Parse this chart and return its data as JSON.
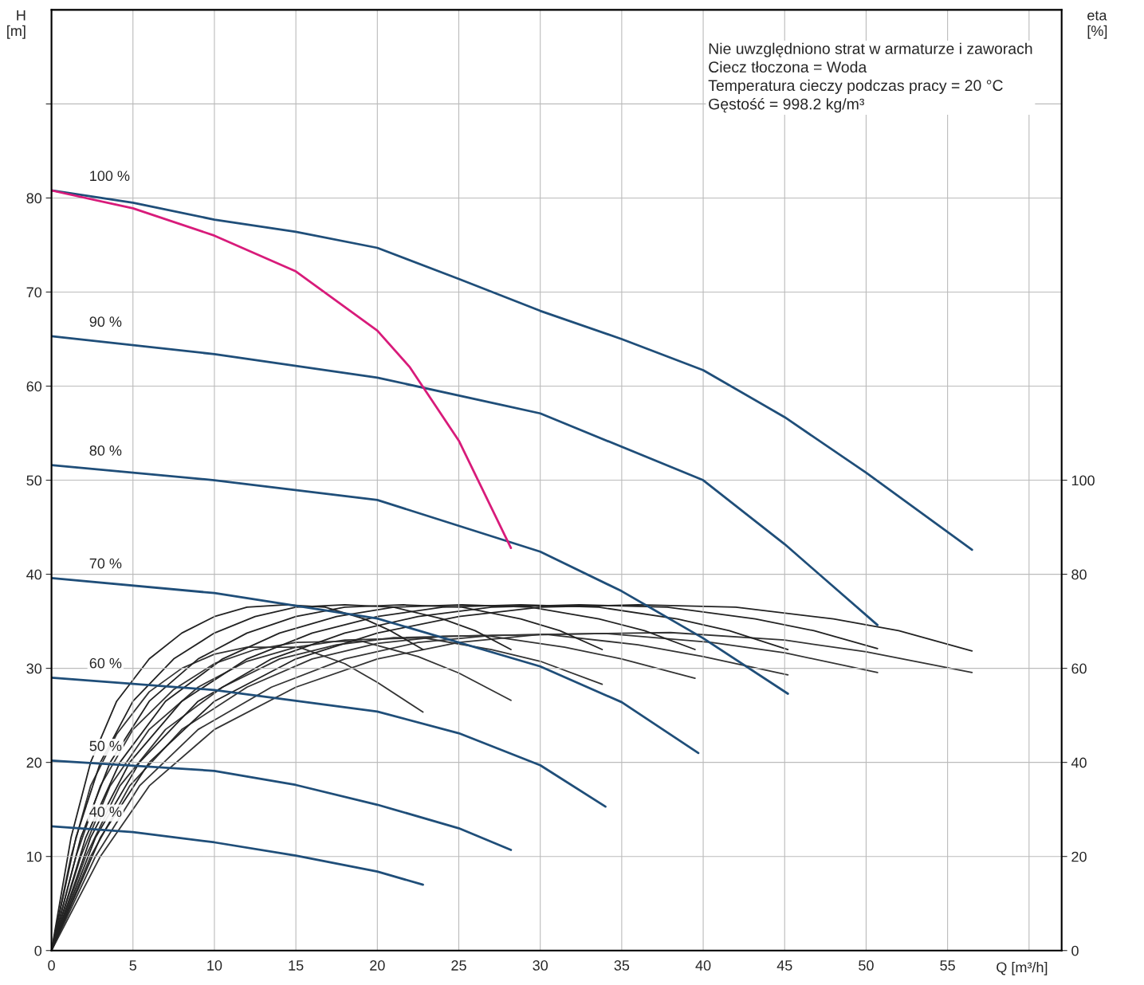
{
  "chart_data": {
    "type": "line",
    "xlabel": "Q [m³/h]",
    "ylabel": "H\n[m]",
    "y2label": "eta\n[%]",
    "xlim": [
      0,
      62
    ],
    "xticks": [
      0,
      5,
      10,
      15,
      20,
      25,
      30,
      35,
      40,
      45,
      50,
      55,
      {
        "value": 60,
        "label": null
      }
    ],
    "ylim": [
      0,
      100
    ],
    "yticks": [
      0,
      10,
      20,
      30,
      40,
      50,
      60,
      70,
      80,
      {
        "value": 90,
        "label": null
      }
    ],
    "y2lim": [
      0,
      200
    ],
    "y2ticks": [
      0,
      20,
      40,
      60,
      80,
      100
    ],
    "grid": true,
    "legend": false,
    "marker": "none",
    "line_style": "solid",
    "annotations": [
      "Nie uwzględniono strat w armaturze i zaworach",
      "Ciecz tłoczona = Woda",
      "Temperatura cieczy podczas pracy = 20 °C",
      "Gęstość = 998.2 kg/m³"
    ],
    "series": [
      {
        "name": "100 %",
        "color": "#1f4e79",
        "x": [
          0,
          5,
          10,
          15,
          20,
          25,
          30,
          35,
          40,
          45,
          50,
          56.5
        ],
        "values": [
          80.8,
          79.5,
          77.7,
          76.4,
          74.7,
          71.4,
          68,
          65,
          61.7,
          56.7,
          50.8,
          42.6
        ]
      },
      {
        "name": "90 %",
        "color": "#1f4e79",
        "x": [
          0,
          10,
          20,
          30,
          40,
          45,
          50.7
        ],
        "values": [
          65.3,
          63.4,
          60.9,
          57.1,
          50,
          43.2,
          34.6
        ]
      },
      {
        "name": "80 %",
        "color": "#1f4e79",
        "x": [
          0,
          10,
          20,
          30,
          35,
          40,
          45.2
        ],
        "values": [
          51.6,
          50,
          47.9,
          42.4,
          38.2,
          33.2,
          27.3
        ]
      },
      {
        "name": "70 %",
        "color": "#1f4e79",
        "x": [
          0,
          10,
          20,
          30,
          35,
          39.7
        ],
        "values": [
          39.6,
          38,
          35.3,
          30.2,
          26.4,
          21
        ]
      },
      {
        "name": "60 %",
        "color": "#1f4e79",
        "x": [
          0,
          10,
          20,
          25,
          30,
          34
        ],
        "values": [
          29,
          27.7,
          25.4,
          23.1,
          19.7,
          15.3
        ]
      },
      {
        "name": "50 %",
        "color": "#1f4e79",
        "x": [
          0,
          10,
          15,
          20,
          25,
          28.2
        ],
        "values": [
          20.2,
          19.1,
          17.6,
          15.5,
          13,
          10.7
        ]
      },
      {
        "name": "40 %",
        "color": "#1f4e79",
        "x": [
          0,
          5,
          10,
          15,
          20,
          22.8
        ],
        "values": [
          13.2,
          12.6,
          11.5,
          10.1,
          8.4,
          7
        ]
      },
      {
        "color": "#d81b7a",
        "x": [
          0,
          5,
          10,
          15,
          20,
          22,
          25,
          28.2
        ],
        "values": [
          80.8,
          78.9,
          76,
          72.2,
          65.9,
          62,
          54.2,
          42.8
        ]
      },
      {
        "color": "#333333",
        "axis": "y2",
        "x": [
          0,
          3,
          6,
          10,
          15,
          20,
          25,
          30,
          38,
          45,
          50,
          56.5
        ],
        "values": [
          0,
          20,
          35,
          47,
          56,
          62,
          65.5,
          67.2,
          67.6,
          66,
          63.5,
          59.1
        ]
      },
      {
        "color": "#333333",
        "axis": "y2",
        "x": [
          0,
          2.7,
          5.4,
          9,
          13.5,
          18,
          22.5,
          27,
          34,
          40.5,
          45,
          50.7
        ],
        "values": [
          0,
          20,
          35,
          47,
          56,
          62,
          65.5,
          67,
          67.4,
          65.5,
          63.3,
          59.1
        ]
      },
      {
        "color": "#333333",
        "axis": "y2",
        "x": [
          0,
          2.4,
          4.8,
          8,
          12,
          16,
          20,
          24,
          30.4,
          36,
          40,
          45.2
        ],
        "values": [
          0,
          20,
          35,
          47,
          56,
          62,
          65.3,
          66.8,
          67.2,
          65,
          62.5,
          58.6
        ]
      },
      {
        "color": "#333333",
        "axis": "y2",
        "x": [
          0,
          2.1,
          4.2,
          7,
          10.5,
          14,
          17.5,
          21,
          26.6,
          31.5,
          35,
          39.5
        ],
        "values": [
          0,
          20,
          35,
          47,
          56,
          62,
          65,
          66.5,
          67,
          64.5,
          62,
          57.9
        ]
      },
      {
        "color": "#333333",
        "axis": "y2",
        "x": [
          0,
          1.8,
          3.6,
          6,
          9,
          12,
          15,
          18,
          22.8,
          27,
          30,
          33.8
        ],
        "values": [
          0,
          20,
          35,
          47,
          56,
          61.5,
          64.5,
          66,
          66.5,
          64,
          61.5,
          56.6
        ]
      },
      {
        "color": "#333333",
        "axis": "y2",
        "x": [
          0,
          1.5,
          3,
          5,
          7.5,
          10,
          12.5,
          15,
          19,
          22.5,
          25,
          28.2
        ],
        "values": [
          0,
          20,
          35,
          47,
          55.5,
          61,
          64,
          65.5,
          65.8,
          62.5,
          59,
          53.2
        ]
      },
      {
        "color": "#333333",
        "axis": "y2",
        "x": [
          0,
          1.2,
          2.4,
          4,
          6,
          8,
          10,
          12,
          15.2,
          18,
          20,
          22.8
        ],
        "values": [
          0,
          20,
          35,
          46,
          55,
          60,
          63,
          64.5,
          64.5,
          61,
          57,
          50.7
        ]
      },
      {
        "color": "#222222",
        "axis": "y2",
        "x": [
          0,
          3,
          6,
          10,
          15,
          20,
          25,
          30,
          36,
          42,
          48,
          52,
          56.5
        ],
        "values": [
          0,
          24,
          40,
          53,
          62,
          67.5,
          71,
          73,
          73.5,
          73,
          70.5,
          68,
          63.7
        ]
      },
      {
        "color": "#222222",
        "axis": "y2",
        "x": [
          0,
          2.7,
          5.4,
          9,
          13.5,
          18,
          22.5,
          27,
          32.4,
          37.8,
          43.2,
          46.8,
          50.7
        ],
        "values": [
          0,
          24,
          40,
          53,
          62,
          67.5,
          71,
          73,
          73.5,
          73,
          70.5,
          68,
          64.2
        ]
      },
      {
        "color": "#222222",
        "axis": "y2",
        "x": [
          0,
          2.4,
          4.8,
          8,
          12,
          16,
          20,
          24,
          28.8,
          33.6,
          38.4,
          41.6,
          45.2
        ],
        "values": [
          0,
          24,
          40,
          53,
          62,
          67.5,
          71,
          73,
          73.5,
          73,
          70.5,
          68,
          64
        ]
      },
      {
        "color": "#222222",
        "axis": "y2",
        "x": [
          0,
          2.1,
          4.2,
          7,
          10.5,
          14,
          17.5,
          21,
          25.2,
          29.4,
          33.6,
          36.4,
          39.5
        ],
        "values": [
          0,
          24,
          40,
          53,
          62,
          67.5,
          71,
          73,
          73.5,
          73,
          70.5,
          68,
          64
        ]
      },
      {
        "color": "#222222",
        "axis": "y2",
        "x": [
          0,
          1.8,
          3.6,
          6,
          9,
          12,
          15,
          18,
          21.6,
          25.2,
          28.8,
          31.2,
          33.8
        ],
        "values": [
          0,
          24,
          40,
          53,
          62,
          67.5,
          71,
          73,
          73.5,
          73,
          70.5,
          68,
          64
        ]
      },
      {
        "color": "#222222",
        "axis": "y2",
        "x": [
          0,
          1.5,
          3,
          5,
          7.5,
          10,
          12.5,
          15,
          18,
          21,
          24,
          26,
          28.2
        ],
        "values": [
          0,
          24,
          40,
          53,
          62,
          67.5,
          71,
          73,
          73.5,
          73,
          70.5,
          68,
          64
        ]
      },
      {
        "color": "#222222",
        "axis": "y2",
        "x": [
          0,
          1.2,
          2.4,
          4,
          6,
          8,
          10,
          12,
          14.4,
          16.8,
          19.2,
          20.8,
          22.8
        ],
        "values": [
          0,
          24,
          40,
          53,
          62,
          67.5,
          71,
          73,
          73.5,
          73,
          70.5,
          68,
          64
        ]
      }
    ]
  }
}
